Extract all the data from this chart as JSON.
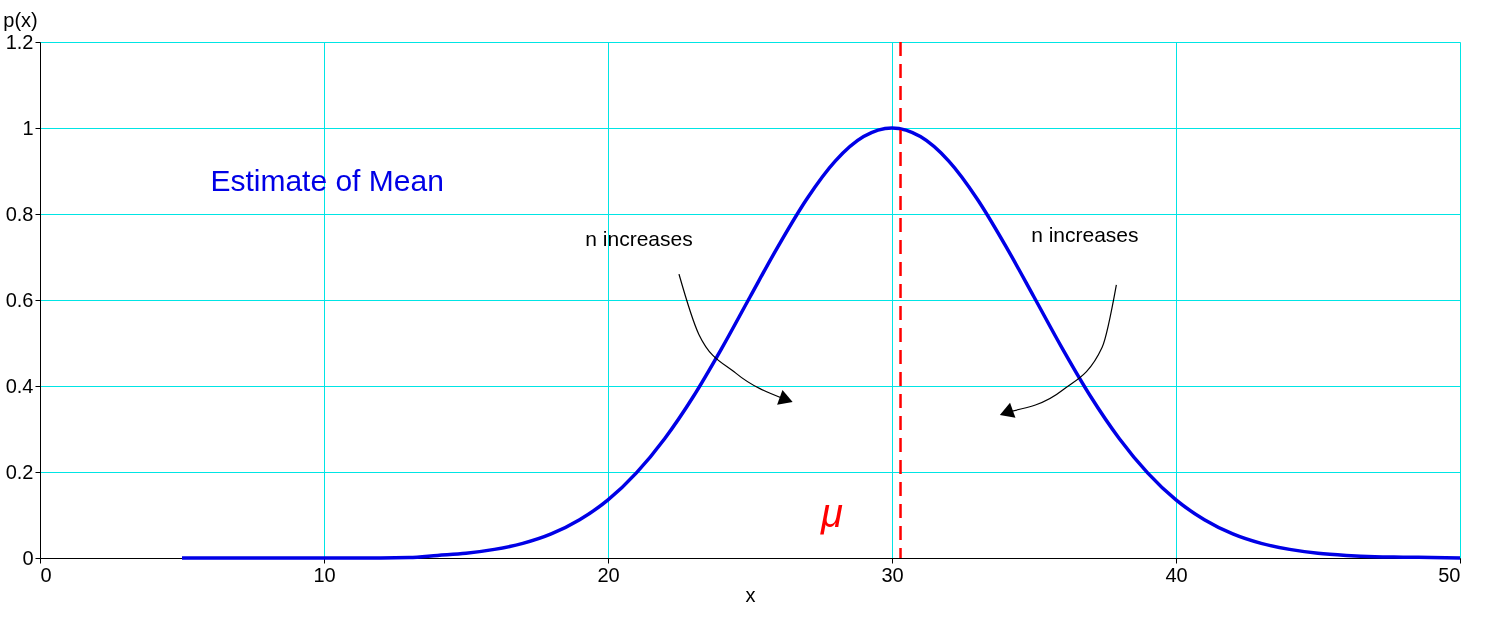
{
  "chart_data": {
    "type": "line",
    "xlabel": "x",
    "ylabel": "p(x)",
    "x": [
      5,
      6,
      7,
      8,
      9,
      10,
      11,
      12,
      13,
      14,
      15,
      16,
      17,
      18,
      19,
      20,
      21,
      22,
      23,
      24,
      25,
      26,
      27,
      28,
      29,
      30,
      31,
      32,
      33,
      34,
      35,
      36,
      37,
      38,
      39,
      40,
      41,
      42,
      43,
      44,
      45,
      46,
      47,
      48,
      49,
      50
    ],
    "series": [
      {
        "color": "#0000e6",
        "values": [
          0,
          0,
          0,
          0,
          0,
          0,
          0,
          0,
          0.001,
          0.006,
          0.011,
          0.02,
          0.034,
          0.056,
          0.089,
          0.135,
          0.198,
          0.278,
          0.375,
          0.487,
          0.607,
          0.726,
          0.835,
          0.923,
          0.98,
          1,
          0.98,
          0.923,
          0.835,
          0.726,
          0.607,
          0.487,
          0.375,
          0.278,
          0.198,
          0.135,
          0.089,
          0.056,
          0.034,
          0.02,
          0.011,
          0.006,
          0.003,
          0.002,
          0.001,
          0
        ]
      }
    ],
    "xlim": [
      0,
      50
    ],
    "ylim": [
      0,
      1.2
    ],
    "xticks": [
      0,
      10,
      20,
      30,
      40,
      50
    ],
    "yticks": [
      0,
      0.2,
      0.4,
      0.6,
      0.8,
      1,
      1.2
    ],
    "grid": true,
    "line_style": "solid",
    "marker": "none",
    "ref_lines": [
      {
        "axis": "x",
        "value": 30.3,
        "color": "#ff0000",
        "line_style": "dashed"
      }
    ],
    "annotations": [
      "Estimate of Mean",
      "n increases",
      "n increases",
      "μ"
    ]
  }
}
